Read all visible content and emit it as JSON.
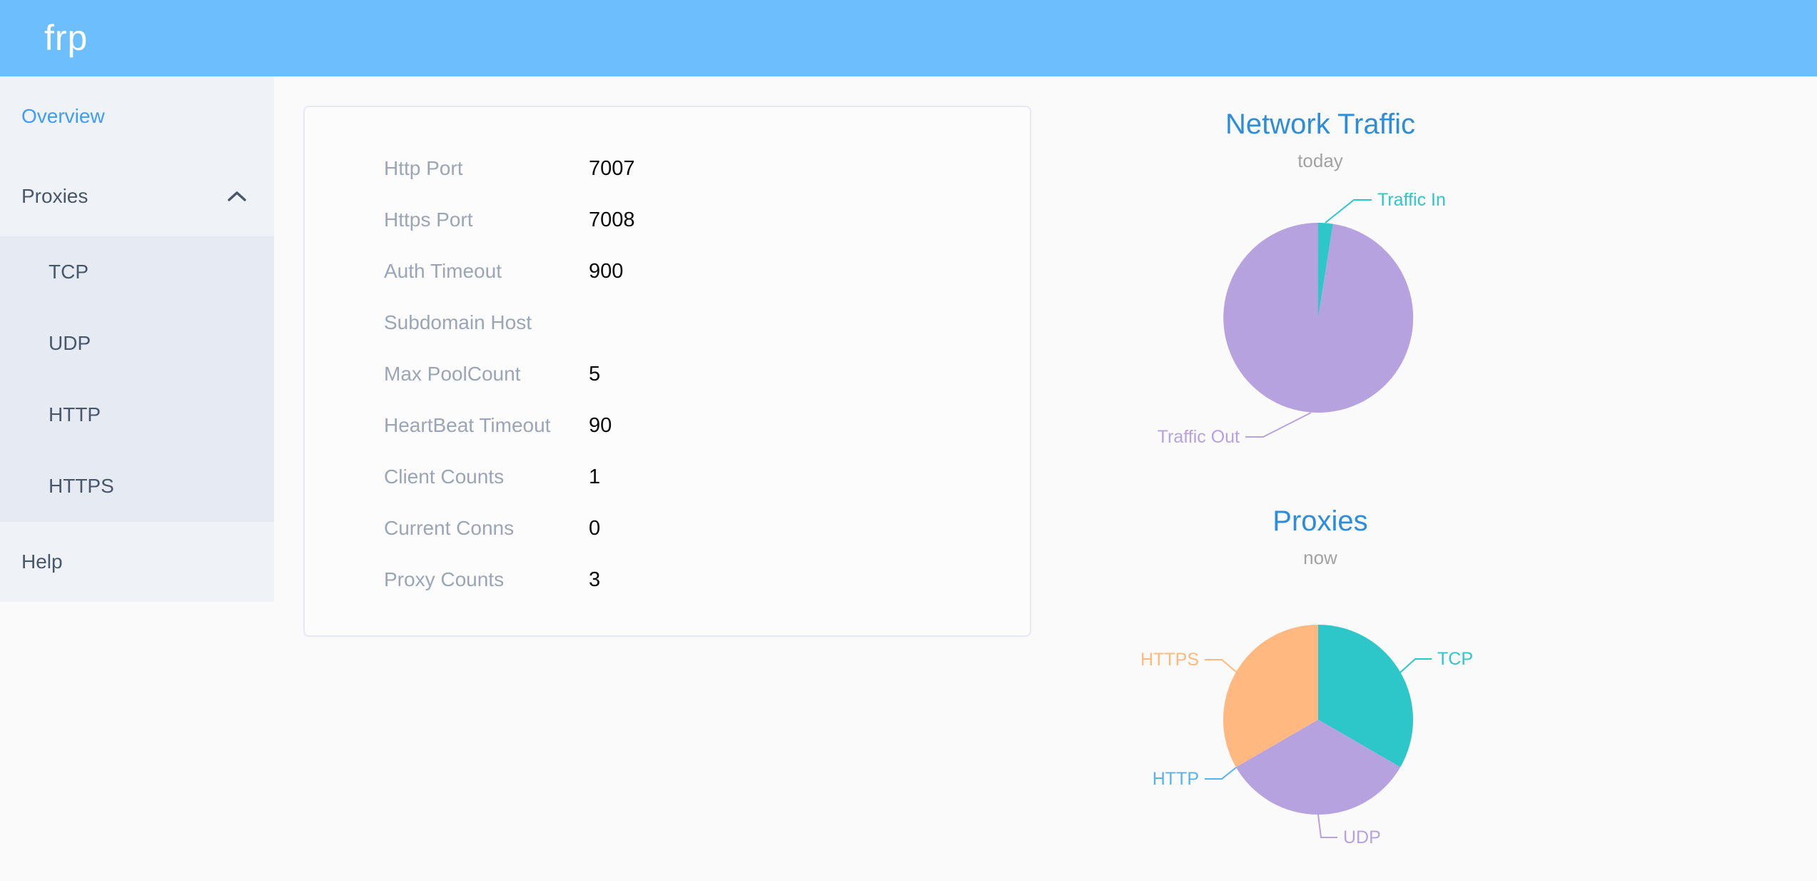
{
  "header": {
    "logo_text": "frp"
  },
  "sidebar": {
    "items": [
      {
        "label": "Overview",
        "active": true
      },
      {
        "label": "Proxies",
        "expanded": true,
        "children": [
          {
            "label": "TCP"
          },
          {
            "label": "UDP"
          },
          {
            "label": "HTTP"
          },
          {
            "label": "HTTPS"
          }
        ]
      },
      {
        "label": "Help"
      }
    ]
  },
  "server_info": {
    "rows": [
      {
        "label": "Http Port",
        "value": "7007"
      },
      {
        "label": "Https Port",
        "value": "7008"
      },
      {
        "label": "Auth Timeout",
        "value": "900"
      },
      {
        "label": "Subdomain Host",
        "value": ""
      },
      {
        "label": "Max PoolCount",
        "value": "5"
      },
      {
        "label": "HeartBeat Timeout",
        "value": "90"
      },
      {
        "label": "Client Counts",
        "value": "1"
      },
      {
        "label": "Current Conns",
        "value": "0"
      },
      {
        "label": "Proxy Counts",
        "value": "3"
      }
    ]
  },
  "chart_data": [
    {
      "type": "pie",
      "title": "Network Traffic",
      "subtitle": "today",
      "legend_position": "callout-labels",
      "series": [
        {
          "name": "Traffic In",
          "value_pct": 2.5,
          "color": "#2ec7c9"
        },
        {
          "name": "Traffic Out",
          "value_pct": 97.5,
          "color": "#b6a2de"
        }
      ]
    },
    {
      "type": "pie",
      "title": "Proxies",
      "subtitle": "now",
      "legend_position": "callout-labels",
      "series": [
        {
          "name": "TCP",
          "value": 1,
          "color": "#2ec7c9"
        },
        {
          "name": "UDP",
          "value": 1,
          "color": "#b6a2de"
        },
        {
          "name": "HTTP",
          "value": 0,
          "color": "#5ab1ef"
        },
        {
          "name": "HTTPS",
          "value": 1,
          "color": "#ffb980"
        }
      ]
    }
  ],
  "colors": {
    "header_bg": "#6dbefc",
    "page_bg": "#fafafb",
    "sidebar_bg": "#eff2f7",
    "submenu_bg": "#e6eaf2",
    "menu_text": "#48576a",
    "menu_active": "#3e9cfa",
    "chart_title": "#2d8dd8",
    "subtitle_gray": "#a2a2a2",
    "card_label": "#9aa5b5"
  }
}
